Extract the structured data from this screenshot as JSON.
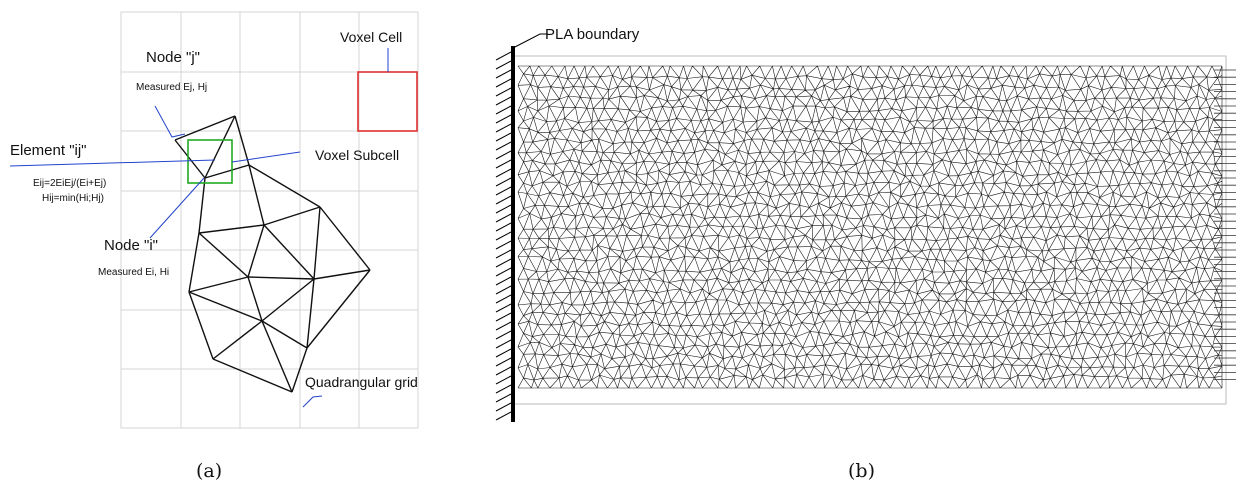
{
  "panel_a": {
    "caption": "(a)",
    "labels": {
      "voxel_cell": "Voxel Cell",
      "node_j": "Node \"j\"",
      "node_j_measured": "Measured Ej, Hj",
      "element_ij": "Element \"ij\"",
      "element_ij_formula_e": "Eij=2EiEj/(Ei+Ej)",
      "element_ij_formula_h": "Hij=min(Hi;Hj)",
      "voxel_subcell": "Voxel Subcell",
      "node_i": "Node \"i\"",
      "node_i_measured": "Measured Ei, Hi",
      "quad_grid": "Quadrangular grid"
    },
    "colors": {
      "voxel_cell": "#e03030",
      "voxel_subcell": "#22aa22",
      "leader": "#2244cc",
      "grid": "#d4d4d4",
      "mesh": "#111111"
    }
  },
  "panel_b": {
    "caption": "(b)",
    "labels": {
      "pla_boundary": "PLA boundary"
    },
    "colors": {
      "mesh": "#1a1a1a",
      "boundary": "#000000"
    }
  }
}
